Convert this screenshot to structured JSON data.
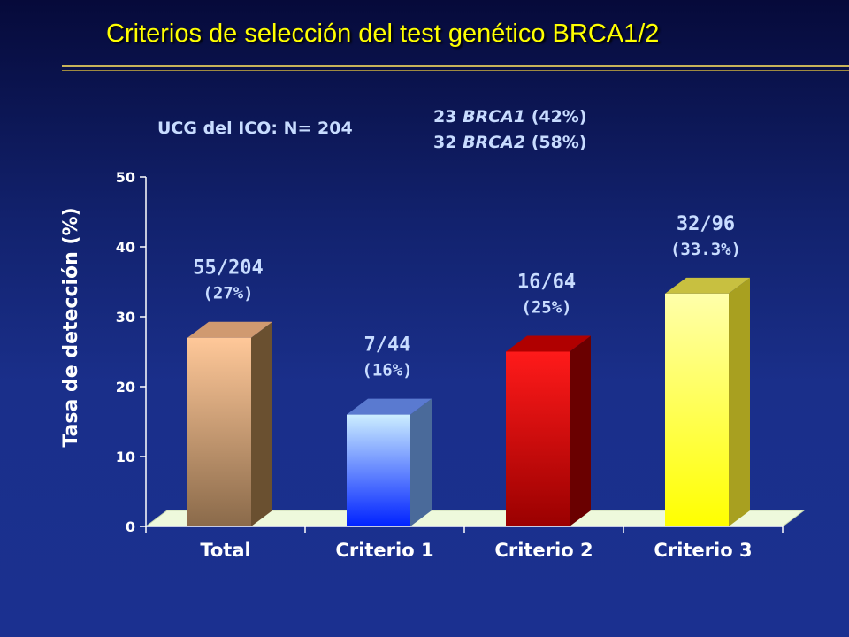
{
  "slide": {
    "title": "Criterios de selección del test genético BRCA1/2",
    "cohort_label": "UCG del ICO: N= 204",
    "brca_lines": [
      {
        "count": "23",
        "gene": "BRCA1",
        "pct": "(42%)"
      },
      {
        "count": "32",
        "gene": "BRCA2",
        "pct": "(58%)"
      }
    ]
  },
  "colors": {
    "title": "#ffff00",
    "text": "#c8dcff",
    "axis_text": "#ffffff",
    "floor": "#eef9dc"
  },
  "chart_data": {
    "type": "bar",
    "ylabel": "Tasa de detección (%)",
    "xlabel": "",
    "ylim": [
      0,
      50
    ],
    "yticks": [
      0,
      10,
      20,
      30,
      40,
      50
    ],
    "categories": [
      "Total",
      "Criterio 1",
      "Criterio 2",
      "Criterio 3"
    ],
    "values": [
      27,
      16,
      25,
      33.3
    ],
    "label_fractions": [
      "55/204",
      "7/44",
      "16/64",
      "32/96"
    ],
    "label_percents": [
      "(27%)",
      "(16%)",
      "(25%)",
      "(33.3%)"
    ],
    "bar_colors": [
      {
        "top": "#ffc899",
        "bottom": "#8a6a4a",
        "side": "#6a5030",
        "cap": "#d09a70"
      },
      {
        "top": "#cceeff",
        "bottom": "#0022ff",
        "side": "#4a6a9a",
        "cap": "#5a7ad0"
      },
      {
        "top": "#ff1a1a",
        "bottom": "#9a0000",
        "side": "#6a0000",
        "cap": "#b00000"
      },
      {
        "top": "#ffffaa",
        "bottom": "#ffff00",
        "side": "#a8a020",
        "cap": "#c8c040"
      }
    ],
    "grid": false
  }
}
